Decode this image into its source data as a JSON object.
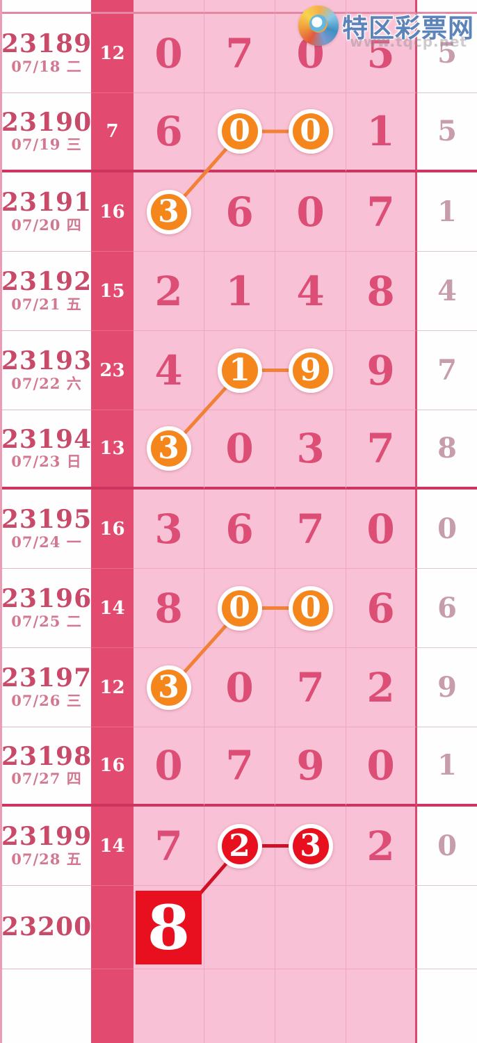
{
  "site": {
    "logo_text": "特区彩票网",
    "watermark": "www.tqcp.net"
  },
  "colors": {
    "sum_band": "#e24a6f",
    "cell_pink": "#f9c1d5",
    "block_line": "#cb3560",
    "digit_rose": "#dc4e76",
    "highlight_orange": "#f5861c",
    "highlight_red": "#e8101e",
    "line_orange": "#f08136",
    "line_red": "#cf1126"
  },
  "table": {
    "rows": [
      {
        "period": "23189",
        "date": "07/18 二",
        "sum": "12",
        "digits": [
          "0",
          "7",
          "0",
          "5"
        ],
        "tail": "5",
        "thick_bottom": false
      },
      {
        "period": "23190",
        "date": "07/19 三",
        "sum": "7",
        "digits": [
          "6",
          "0",
          "0",
          "1"
        ],
        "tail": "5",
        "thick_bottom": true
      },
      {
        "period": "23191",
        "date": "07/20 四",
        "sum": "16",
        "digits": [
          "3",
          "6",
          "0",
          "7"
        ],
        "tail": "1",
        "thick_bottom": false
      },
      {
        "period": "23192",
        "date": "07/21 五",
        "sum": "15",
        "digits": [
          "2",
          "1",
          "4",
          "8"
        ],
        "tail": "4",
        "thick_bottom": false
      },
      {
        "period": "23193",
        "date": "07/22 六",
        "sum": "23",
        "digits": [
          "4",
          "1",
          "9",
          "9"
        ],
        "tail": "7",
        "thick_bottom": false
      },
      {
        "period": "23194",
        "date": "07/23 日",
        "sum": "13",
        "digits": [
          "3",
          "0",
          "3",
          "7"
        ],
        "tail": "8",
        "thick_bottom": true
      },
      {
        "period": "23195",
        "date": "07/24 一",
        "sum": "16",
        "digits": [
          "3",
          "6",
          "7",
          "0"
        ],
        "tail": "0",
        "thick_bottom": false
      },
      {
        "period": "23196",
        "date": "07/25 二",
        "sum": "14",
        "digits": [
          "8",
          "0",
          "0",
          "6"
        ],
        "tail": "6",
        "thick_bottom": false
      },
      {
        "period": "23197",
        "date": "07/26 三",
        "sum": "12",
        "digits": [
          "3",
          "0",
          "7",
          "2"
        ],
        "tail": "9",
        "thick_bottom": false
      },
      {
        "period": "23198",
        "date": "07/27 四",
        "sum": "16",
        "digits": [
          "0",
          "7",
          "9",
          "0"
        ],
        "tail": "1",
        "thick_bottom": true
      },
      {
        "period": "23199",
        "date": "07/28 五",
        "sum": "14",
        "digits": [
          "7",
          "2",
          "3",
          "2"
        ],
        "tail": "0",
        "thick_bottom": false
      },
      {
        "period": "23200",
        "date": "",
        "sum": "",
        "digits": [
          "8",
          "",
          "",
          ""
        ],
        "tail": "",
        "thick_bottom": false
      }
    ],
    "highlights": [
      {
        "row": 1,
        "col": 1,
        "shape": "circle",
        "color": "orange"
      },
      {
        "row": 1,
        "col": 2,
        "shape": "circle",
        "color": "orange"
      },
      {
        "row": 2,
        "col": 0,
        "shape": "circle",
        "color": "orange"
      },
      {
        "row": 4,
        "col": 1,
        "shape": "circle",
        "color": "orange"
      },
      {
        "row": 4,
        "col": 2,
        "shape": "circle",
        "color": "orange"
      },
      {
        "row": 5,
        "col": 0,
        "shape": "circle",
        "color": "orange"
      },
      {
        "row": 7,
        "col": 1,
        "shape": "circle",
        "color": "orange"
      },
      {
        "row": 7,
        "col": 2,
        "shape": "circle",
        "color": "orange"
      },
      {
        "row": 8,
        "col": 0,
        "shape": "circle",
        "color": "orange"
      },
      {
        "row": 10,
        "col": 1,
        "shape": "circle",
        "color": "red"
      },
      {
        "row": 10,
        "col": 2,
        "shape": "circle",
        "color": "red"
      },
      {
        "row": 11,
        "col": 0,
        "shape": "square",
        "color": "red"
      }
    ],
    "chains": [
      {
        "color": "orange",
        "points": [
          [
            2,
            0
          ],
          [
            1,
            1
          ],
          [
            1,
            2
          ]
        ]
      },
      {
        "color": "orange",
        "points": [
          [
            5,
            0
          ],
          [
            4,
            1
          ],
          [
            4,
            2
          ]
        ]
      },
      {
        "color": "orange",
        "points": [
          [
            8,
            0
          ],
          [
            7,
            1
          ],
          [
            7,
            2
          ]
        ]
      },
      {
        "color": "red",
        "points": [
          [
            11,
            0
          ],
          [
            10,
            1
          ],
          [
            10,
            2
          ]
        ]
      }
    ]
  }
}
